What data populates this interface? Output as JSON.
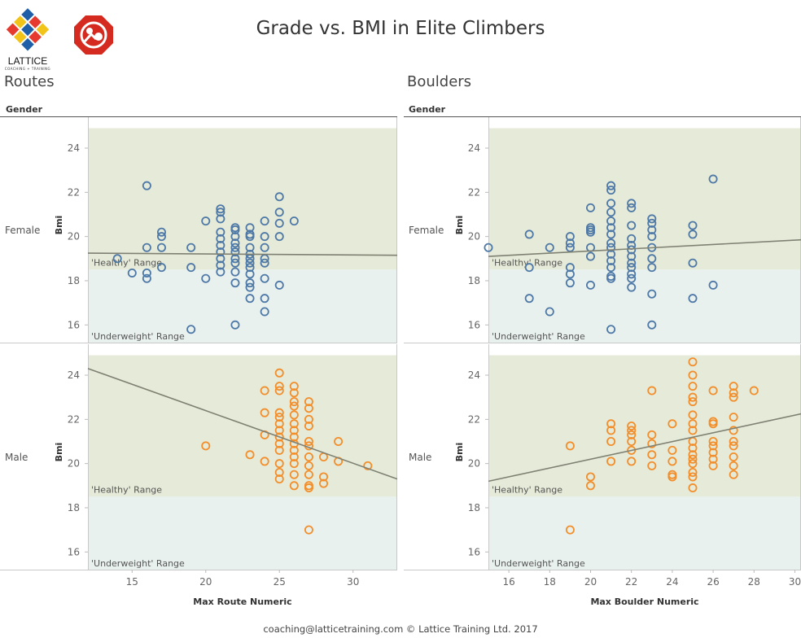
{
  "title": "Grade vs. BMI in Elite Climbers",
  "logo": {
    "brand_text": "LATTICE",
    "tagline": "COACHING + TRAINING",
    "icon": "lattice-diamond-logo"
  },
  "badge_icon": "red-octagon-climbing-badge",
  "footer": "coaching@latticetraining.com © Lattice Training Ltd. 2017",
  "colors": {
    "female": "#4e79a7",
    "male": "#f28e2b",
    "healthy_band": "#e6ead8",
    "underweight_band": "#e9f1ef",
    "trend": "#7f8273"
  },
  "chart_data": [
    {
      "type": "scatter",
      "section": "Routes",
      "facet_header": "Gender",
      "xlabel": "Max Route Numeric",
      "ylabel": "Bmi",
      "xlim": [
        12,
        33
      ],
      "xticks": [
        15,
        20,
        25,
        30
      ],
      "ylim": [
        15.2,
        25.4
      ],
      "yticks": [
        16,
        18,
        20,
        22,
        24
      ],
      "bands": [
        {
          "label": "'Healthy' Range",
          "from": 18.5,
          "to": 24.9
        },
        {
          "label": "'Underweight' Range",
          "from": 15.2,
          "to": 18.5
        }
      ],
      "panels": [
        {
          "gender": "Female",
          "series": {
            "name": "Female",
            "color": "#4e79a7"
          },
          "trend": [
            [
              12,
              19.25
            ],
            [
              33,
              19.15
            ]
          ],
          "points": [
            [
              14,
              19.0
            ],
            [
              15,
              18.35
            ],
            [
              16,
              22.3
            ],
            [
              16,
              19.5
            ],
            [
              16,
              18.35
            ],
            [
              16,
              18.1
            ],
            [
              17,
              20.2
            ],
            [
              17,
              20.0
            ],
            [
              17,
              19.5
            ],
            [
              17,
              18.6
            ],
            [
              19,
              19.5
            ],
            [
              19,
              18.6
            ],
            [
              19,
              15.8
            ],
            [
              20,
              20.7
            ],
            [
              20,
              18.1
            ],
            [
              21,
              21.25
            ],
            [
              21,
              21.1
            ],
            [
              21,
              20.8
            ],
            [
              21,
              20.2
            ],
            [
              21,
              19.9
            ],
            [
              21,
              19.6
            ],
            [
              21,
              19.3
            ],
            [
              21,
              19.0
            ],
            [
              21,
              18.7
            ],
            [
              21,
              18.4
            ],
            [
              22,
              20.4
            ],
            [
              22,
              20.3
            ],
            [
              22,
              20.0
            ],
            [
              22,
              19.7
            ],
            [
              22,
              19.5
            ],
            [
              22,
              19.3
            ],
            [
              22,
              19.0
            ],
            [
              22,
              18.8
            ],
            [
              22,
              18.4
            ],
            [
              22,
              17.9
            ],
            [
              22,
              16.0
            ],
            [
              23,
              20.4
            ],
            [
              23,
              20.1
            ],
            [
              23,
              20.0
            ],
            [
              23,
              19.5
            ],
            [
              23,
              19.2
            ],
            [
              23,
              19.0
            ],
            [
              23,
              18.8
            ],
            [
              23,
              18.6
            ],
            [
              23,
              18.3
            ],
            [
              23,
              17.9
            ],
            [
              23,
              17.7
            ],
            [
              23,
              17.2
            ],
            [
              24,
              20.7
            ],
            [
              24,
              20.0
            ],
            [
              24,
              19.5
            ],
            [
              24,
              19.0
            ],
            [
              24,
              18.8
            ],
            [
              24,
              18.1
            ],
            [
              24,
              17.2
            ],
            [
              24,
              16.6
            ],
            [
              25,
              21.8
            ],
            [
              25,
              21.1
            ],
            [
              25,
              20.6
            ],
            [
              25,
              20.0
            ],
            [
              25,
              17.8
            ],
            [
              26,
              20.7
            ]
          ]
        },
        {
          "gender": "Male",
          "series": {
            "name": "Male",
            "color": "#f28e2b"
          },
          "trend": [
            [
              12,
              24.3
            ],
            [
              33,
              19.3
            ]
          ],
          "points": [
            [
              20,
              20.8
            ],
            [
              23,
              20.4
            ],
            [
              24,
              23.3
            ],
            [
              24,
              22.3
            ],
            [
              24,
              21.3
            ],
            [
              24,
              20.1
            ],
            [
              25,
              24.1
            ],
            [
              25,
              23.5
            ],
            [
              25,
              23.3
            ],
            [
              25,
              22.3
            ],
            [
              25,
              22.1
            ],
            [
              25,
              21.8
            ],
            [
              25,
              21.5
            ],
            [
              25,
              21.2
            ],
            [
              25,
              20.9
            ],
            [
              25,
              20.6
            ],
            [
              25,
              20.0
            ],
            [
              25,
              19.6
            ],
            [
              25,
              19.3
            ],
            [
              26,
              23.5
            ],
            [
              26,
              23.2
            ],
            [
              26,
              22.8
            ],
            [
              26,
              22.6
            ],
            [
              26,
              22.2
            ],
            [
              26,
              21.8
            ],
            [
              26,
              21.5
            ],
            [
              26,
              21.2
            ],
            [
              26,
              20.9
            ],
            [
              26,
              20.6
            ],
            [
              26,
              20.3
            ],
            [
              26,
              20.0
            ],
            [
              26,
              19.5
            ],
            [
              26,
              19.0
            ],
            [
              27,
              22.8
            ],
            [
              27,
              22.5
            ],
            [
              27,
              22.0
            ],
            [
              27,
              21.7
            ],
            [
              27,
              21.0
            ],
            [
              27,
              20.8
            ],
            [
              27,
              20.3
            ],
            [
              27,
              19.9
            ],
            [
              27,
              19.5
            ],
            [
              27,
              19.0
            ],
            [
              27,
              18.9
            ],
            [
              27,
              17.0
            ],
            [
              28,
              20.3
            ],
            [
              28,
              19.4
            ],
            [
              28,
              19.1
            ],
            [
              29,
              21.0
            ],
            [
              29,
              20.1
            ],
            [
              31,
              19.9
            ]
          ]
        }
      ]
    },
    {
      "type": "scatter",
      "section": "Boulders",
      "facet_header": "Gender",
      "xlabel": "Max Boulder Numeric",
      "ylabel": "Bmi",
      "xlim": [
        15,
        30.3
      ],
      "xticks": [
        16,
        18,
        20,
        22,
        24,
        26,
        28,
        30
      ],
      "ylim": [
        15.2,
        25.4
      ],
      "yticks": [
        16,
        18,
        20,
        22,
        24
      ],
      "bands": [
        {
          "label": "'Healthy' Range",
          "from": 18.5,
          "to": 24.9
        },
        {
          "label": "'Underweight' Range",
          "from": 15.2,
          "to": 18.5
        }
      ],
      "panels": [
        {
          "gender": "Female",
          "series": {
            "name": "Female",
            "color": "#4e79a7"
          },
          "trend": [
            [
              15,
              19.1
            ],
            [
              30.3,
              19.85
            ]
          ],
          "points": [
            [
              15,
              19.5
            ],
            [
              17,
              20.1
            ],
            [
              17,
              18.6
            ],
            [
              17,
              17.2
            ],
            [
              18,
              19.5
            ],
            [
              18,
              16.6
            ],
            [
              19,
              20.0
            ],
            [
              19,
              19.7
            ],
            [
              19,
              19.5
            ],
            [
              19,
              18.6
            ],
            [
              19,
              18.3
            ],
            [
              19,
              17.9
            ],
            [
              20,
              21.3
            ],
            [
              20,
              20.4
            ],
            [
              20,
              20.3
            ],
            [
              20,
              20.2
            ],
            [
              20,
              19.5
            ],
            [
              20,
              19.1
            ],
            [
              20,
              17.8
            ],
            [
              21,
              22.3
            ],
            [
              21,
              22.1
            ],
            [
              21,
              21.5
            ],
            [
              21,
              21.1
            ],
            [
              21,
              20.7
            ],
            [
              21,
              20.4
            ],
            [
              21,
              20.1
            ],
            [
              21,
              19.7
            ],
            [
              21,
              19.5
            ],
            [
              21,
              19.2
            ],
            [
              21,
              18.9
            ],
            [
              21,
              18.6
            ],
            [
              21,
              18.2
            ],
            [
              21,
              18.1
            ],
            [
              21,
              15.8
            ],
            [
              22,
              21.5
            ],
            [
              22,
              21.3
            ],
            [
              22,
              20.5
            ],
            [
              22,
              19.9
            ],
            [
              22,
              19.6
            ],
            [
              22,
              19.4
            ],
            [
              22,
              19.1
            ],
            [
              22,
              18.8
            ],
            [
              22,
              18.6
            ],
            [
              22,
              18.3
            ],
            [
              22,
              18.1
            ],
            [
              22,
              17.7
            ],
            [
              23,
              20.8
            ],
            [
              23,
              20.6
            ],
            [
              23,
              20.3
            ],
            [
              23,
              20.0
            ],
            [
              23,
              19.5
            ],
            [
              23,
              19.0
            ],
            [
              23,
              18.6
            ],
            [
              23,
              17.4
            ],
            [
              23,
              16.0
            ],
            [
              25,
              20.5
            ],
            [
              25,
              20.1
            ],
            [
              25,
              18.8
            ],
            [
              25,
              17.2
            ],
            [
              26,
              22.6
            ],
            [
              26,
              17.8
            ]
          ]
        },
        {
          "gender": "Male",
          "series": {
            "name": "Male",
            "color": "#f28e2b"
          },
          "trend": [
            [
              15,
              19.2
            ],
            [
              30.3,
              22.25
            ]
          ],
          "points": [
            [
              19,
              20.8
            ],
            [
              19,
              17.0
            ],
            [
              20,
              19.4
            ],
            [
              20,
              19.0
            ],
            [
              21,
              21.8
            ],
            [
              21,
              21.5
            ],
            [
              21,
              21.0
            ],
            [
              21,
              20.1
            ],
            [
              22,
              21.7
            ],
            [
              22,
              21.5
            ],
            [
              22,
              21.3
            ],
            [
              22,
              21.0
            ],
            [
              22,
              20.6
            ],
            [
              22,
              20.1
            ],
            [
              23,
              23.3
            ],
            [
              23,
              21.3
            ],
            [
              23,
              20.9
            ],
            [
              23,
              20.4
            ],
            [
              23,
              19.9
            ],
            [
              24,
              21.8
            ],
            [
              24,
              20.6
            ],
            [
              24,
              20.1
            ],
            [
              24,
              19.5
            ],
            [
              24,
              19.4
            ],
            [
              25,
              24.6
            ],
            [
              25,
              24.0
            ],
            [
              25,
              23.5
            ],
            [
              25,
              23.0
            ],
            [
              25,
              22.8
            ],
            [
              25,
              22.2
            ],
            [
              25,
              21.8
            ],
            [
              25,
              21.5
            ],
            [
              25,
              21.0
            ],
            [
              25,
              20.7
            ],
            [
              25,
              20.4
            ],
            [
              25,
              20.2
            ],
            [
              25,
              20.0
            ],
            [
              25,
              19.6
            ],
            [
              25,
              19.4
            ],
            [
              25,
              18.9
            ],
            [
              26,
              23.3
            ],
            [
              26,
              21.9
            ],
            [
              26,
              21.8
            ],
            [
              26,
              21.0
            ],
            [
              26,
              20.8
            ],
            [
              26,
              20.5
            ],
            [
              26,
              20.2
            ],
            [
              26,
              19.9
            ],
            [
              27,
              23.5
            ],
            [
              27,
              23.2
            ],
            [
              27,
              23.0
            ],
            [
              27,
              22.1
            ],
            [
              27,
              21.5
            ],
            [
              27,
              21.0
            ],
            [
              27,
              20.8
            ],
            [
              27,
              20.3
            ],
            [
              27,
              19.9
            ],
            [
              27,
              19.5
            ],
            [
              28,
              23.3
            ]
          ]
        }
      ]
    }
  ]
}
